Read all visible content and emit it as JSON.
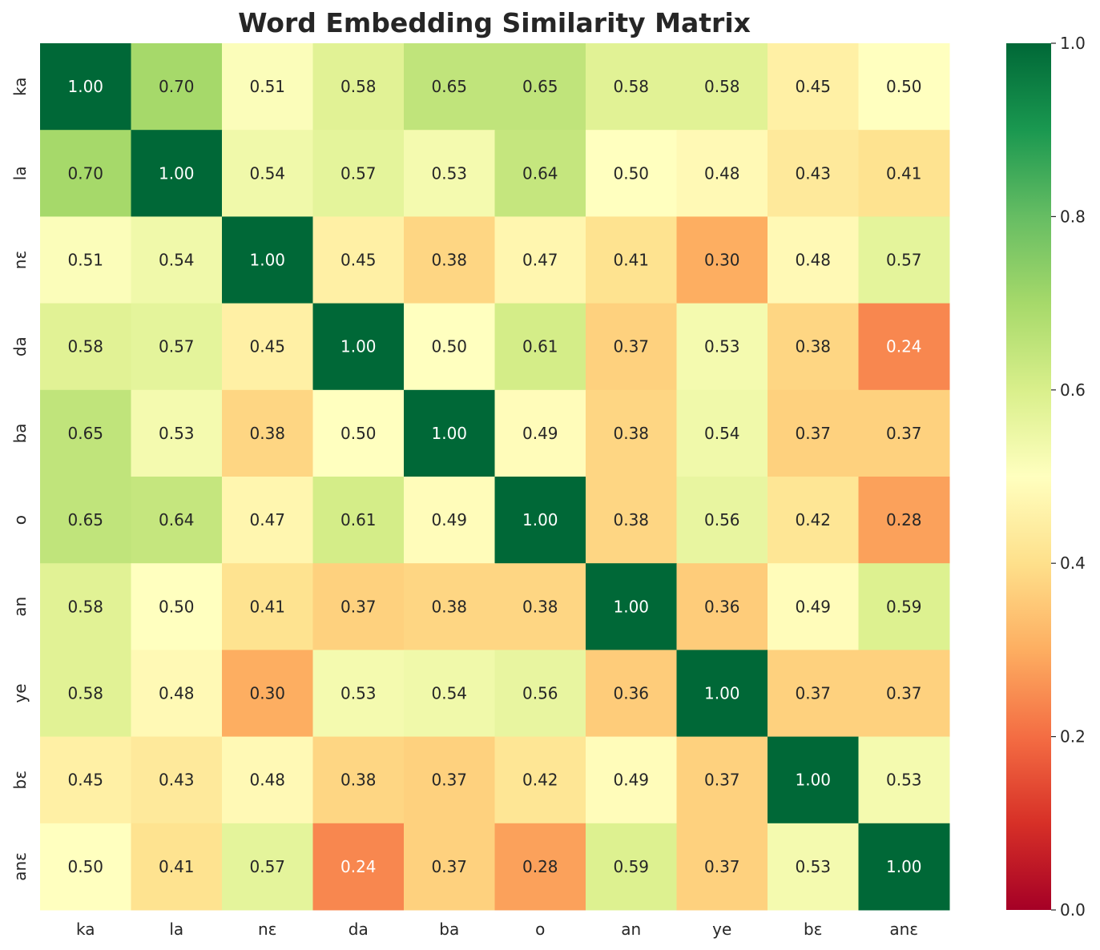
{
  "chart_data": {
    "type": "heatmap",
    "title": "Word Embedding Similarity Matrix",
    "x_labels": [
      "ka",
      "la",
      "nɛ",
      "da",
      "ba",
      "o",
      "an",
      "ye",
      "bɛ",
      "anɛ"
    ],
    "y_labels": [
      "ka",
      "la",
      "nɛ",
      "da",
      "ba",
      "o",
      "an",
      "ye",
      "bɛ",
      "anɛ"
    ],
    "values": [
      [
        1.0,
        0.7,
        0.51,
        0.58,
        0.65,
        0.65,
        0.58,
        0.58,
        0.45,
        0.5
      ],
      [
        0.7,
        1.0,
        0.54,
        0.57,
        0.53,
        0.64,
        0.5,
        0.48,
        0.43,
        0.41
      ],
      [
        0.51,
        0.54,
        1.0,
        0.45,
        0.38,
        0.47,
        0.41,
        0.3,
        0.48,
        0.57
      ],
      [
        0.58,
        0.57,
        0.45,
        1.0,
        0.5,
        0.61,
        0.37,
        0.53,
        0.38,
        0.24
      ],
      [
        0.65,
        0.53,
        0.38,
        0.5,
        1.0,
        0.49,
        0.38,
        0.54,
        0.37,
        0.37
      ],
      [
        0.65,
        0.64,
        0.47,
        0.61,
        0.49,
        1.0,
        0.38,
        0.56,
        0.42,
        0.28
      ],
      [
        0.58,
        0.5,
        0.41,
        0.37,
        0.38,
        0.38,
        1.0,
        0.36,
        0.49,
        0.59
      ],
      [
        0.58,
        0.48,
        0.3,
        0.53,
        0.54,
        0.56,
        0.36,
        1.0,
        0.37,
        0.37
      ],
      [
        0.45,
        0.43,
        0.48,
        0.38,
        0.37,
        0.42,
        0.49,
        0.37,
        1.0,
        0.53
      ],
      [
        0.5,
        0.41,
        0.57,
        0.24,
        0.37,
        0.28,
        0.59,
        0.37,
        0.53,
        1.0
      ]
    ],
    "value_format": "2 decimals",
    "colormap": "RdYlGn",
    "vmin": 0.0,
    "vmax": 1.0,
    "colorbar_ticks": [
      "0.0",
      "0.2",
      "0.4",
      "0.6",
      "0.8",
      "1.0"
    ],
    "grid": false,
    "colorbar_position": "right"
  }
}
